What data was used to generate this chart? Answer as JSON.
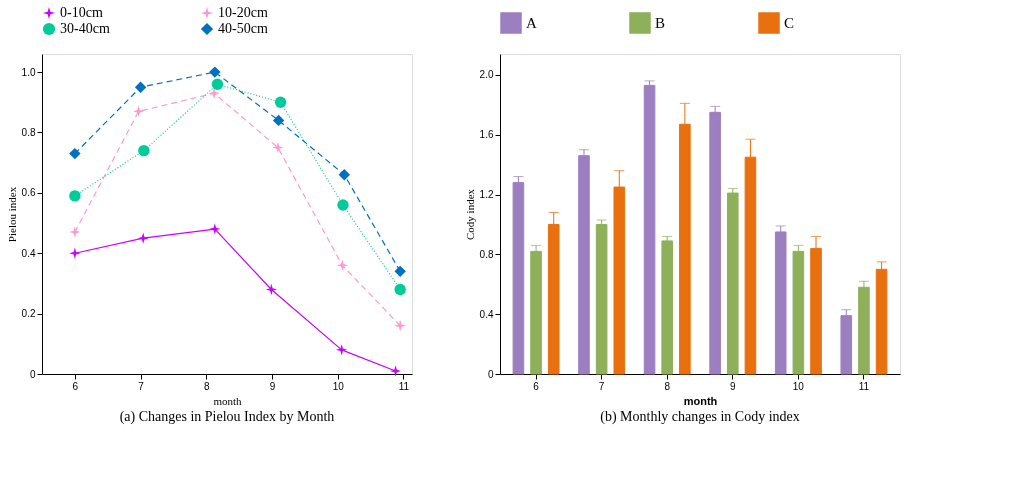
{
  "chart_data": [
    {
      "type": "line",
      "title": "(a) Changes in Pielou Index by Month",
      "xlabel": "month",
      "ylabel": "Pielou index",
      "xlim": [
        5.5,
        11.13
      ],
      "xticks": [
        6,
        7,
        8,
        9,
        10,
        11
      ],
      "ylim": [
        0,
        1.06
      ],
      "yticks": [
        0,
        0.2,
        0.4,
        0.6,
        0.8,
        {
          "value": 1,
          "label": "1.0"
        }
      ],
      "legend": "top",
      "grid": false,
      "series": [
        {
          "name": "0-10cm",
          "color": "#cc00ff",
          "marker": "star",
          "line_style": "solid",
          "x": [
            6,
            7.04,
            8.13,
            8.99,
            10.06,
            10.88
          ],
          "values": [
            0.4,
            0.45,
            0.48,
            0.28,
            0.08,
            0.01
          ]
        },
        {
          "name": "10-20cm",
          "color": "#ff99cc",
          "marker": "star",
          "line_style": "dashed",
          "x": [
            6,
            6.97,
            8.12,
            9.09,
            10.07,
            10.95
          ],
          "values": [
            0.47,
            0.87,
            0.93,
            0.75,
            0.36,
            0.16
          ]
        },
        {
          "name": "30-40cm",
          "color": "#00cc99",
          "marker": "circle",
          "line_style": "dotted",
          "x": [
            6,
            7.05,
            8.17,
            9.13,
            10.08,
            10.95
          ],
          "values": [
            0.59,
            0.74,
            0.96,
            0.9,
            0.56,
            0.28
          ]
        },
        {
          "name": "40-50cm",
          "color": "#0070c0",
          "marker": "diamond",
          "line_style": "dashed",
          "x": [
            6,
            7.0,
            8.13,
            9.1,
            10.1,
            10.95
          ],
          "values": [
            0.73,
            0.95,
            1.0,
            0.84,
            0.66,
            0.34
          ]
        }
      ]
    },
    {
      "type": "bar",
      "title": "(b) Monthly changes in Cody index",
      "xlabel": "month",
      "ylabel": "Cody index",
      "categories": [
        "6",
        "7",
        "8",
        "9",
        "10",
        "11"
      ],
      "ylim": [
        0,
        2.14
      ],
      "yticks": [
        0,
        0.4,
        0.8,
        1.2,
        1.6,
        {
          "value": 2,
          "label": "2.0"
        }
      ],
      "legend": "top",
      "grid": false,
      "series": [
        {
          "name": "A",
          "color": "#9b7fc0",
          "values": [
            1.28,
            1.46,
            1.93,
            1.75,
            0.95,
            0.39
          ],
          "errors": [
            [
              1.28,
              1.32
            ],
            [
              1.46,
              1.5
            ],
            [
              1.93,
              1.96
            ],
            [
              1.75,
              1.79
            ],
            [
              0.95,
              0.99
            ],
            [
              0.39,
              0.43
            ]
          ]
        },
        {
          "name": "B",
          "color": "#8fb05a",
          "values": [
            0.82,
            1.0,
            0.89,
            1.21,
            0.82,
            0.58
          ],
          "errors": [
            [
              0.82,
              0.86
            ],
            [
              1.0,
              1.03
            ],
            [
              0.89,
              0.92
            ],
            [
              1.21,
              1.24
            ],
            [
              0.82,
              0.86
            ],
            [
              0.58,
              0.62
            ]
          ]
        },
        {
          "name": "C",
          "color": "#e8700f",
          "values": [
            1.0,
            1.25,
            1.67,
            1.45,
            0.84,
            0.7
          ],
          "errors": [
            [
              1.0,
              1.08
            ],
            [
              1.25,
              1.36
            ],
            [
              1.67,
              1.81
            ],
            [
              1.45,
              1.57
            ],
            [
              0.84,
              0.92
            ],
            [
              0.7,
              0.75
            ]
          ]
        }
      ]
    }
  ]
}
